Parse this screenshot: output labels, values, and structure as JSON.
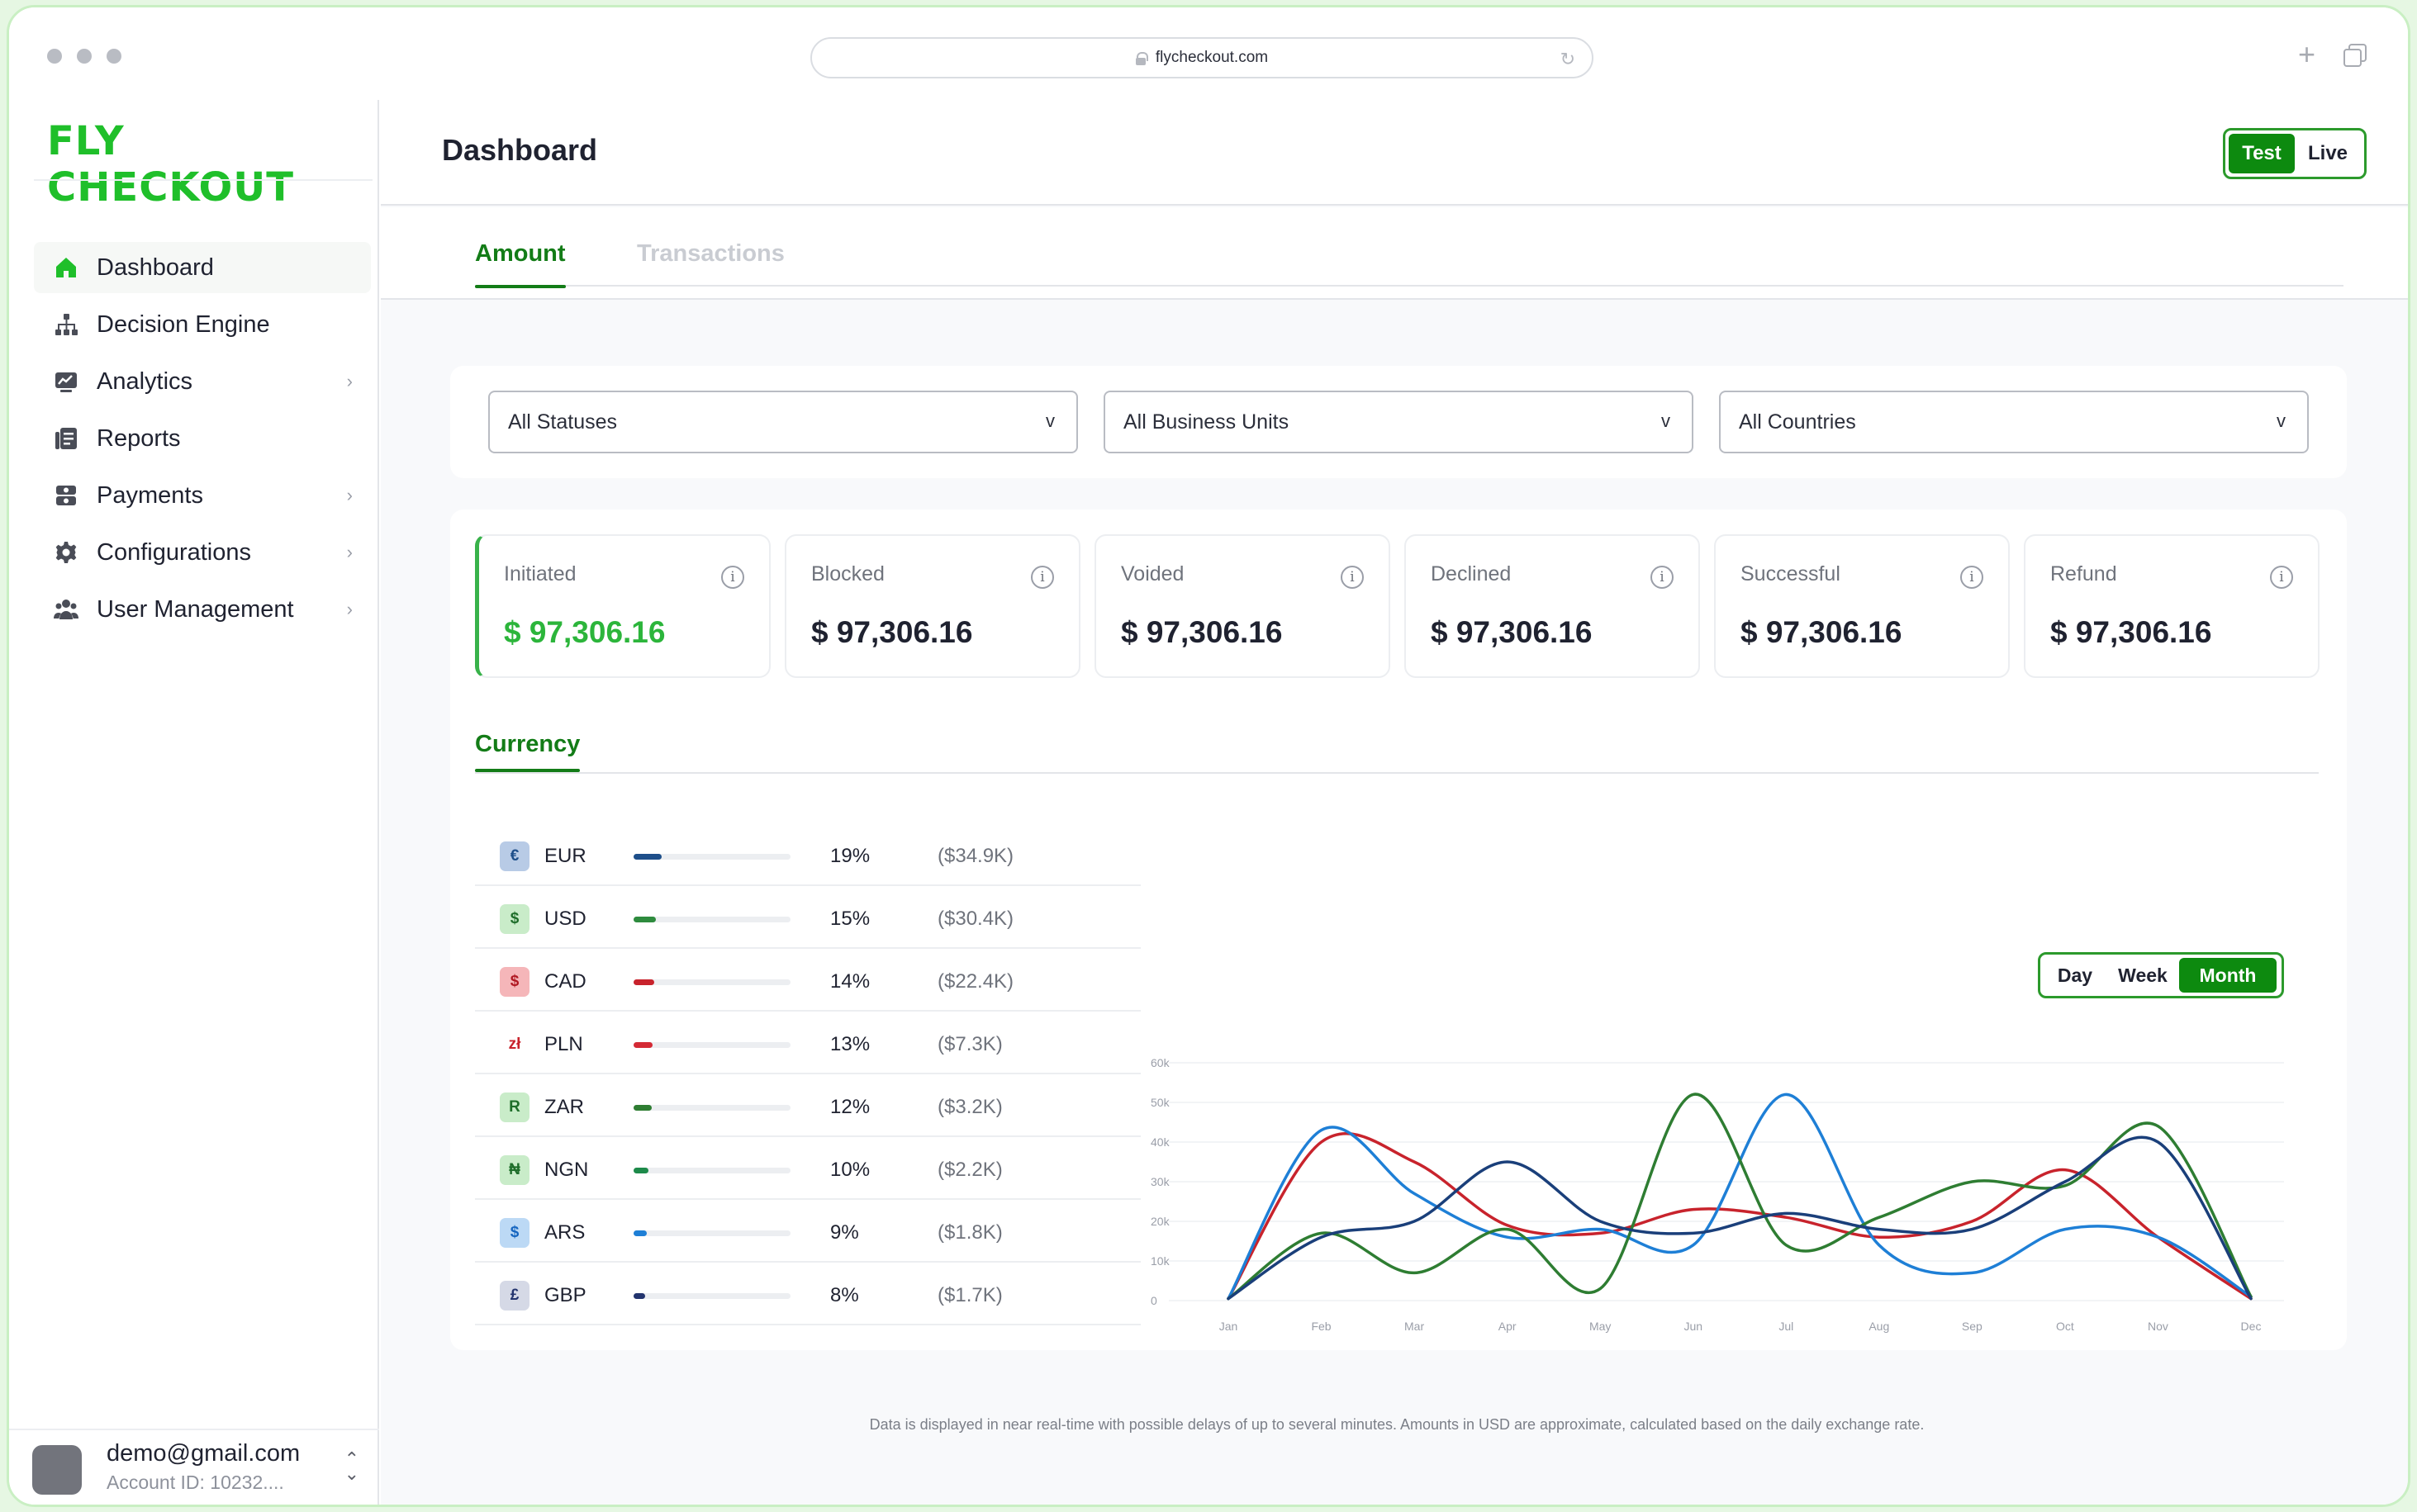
{
  "browser": {
    "url": "flycheckout.com"
  },
  "sidebar": {
    "logo": "FLY CHECKOUT",
    "items": [
      {
        "label": "Dashboard",
        "icon": "home-icon",
        "has_chevron": false
      },
      {
        "label": "Decision Engine",
        "icon": "hierarchy-icon",
        "has_chevron": false
      },
      {
        "label": "Analytics",
        "icon": "analytics-icon",
        "has_chevron": true
      },
      {
        "label": "Reports",
        "icon": "reports-icon",
        "has_chevron": false
      },
      {
        "label": "Payments",
        "icon": "payments-icon",
        "has_chevron": true
      },
      {
        "label": "Configurations",
        "icon": "gear-icon",
        "has_chevron": true
      },
      {
        "label": "User Management",
        "icon": "users-icon",
        "has_chevron": true
      }
    ],
    "user": {
      "email": "demo@gmail.com",
      "account": "Account ID: 10232...."
    }
  },
  "header": {
    "title": "Dashboard",
    "env": {
      "test": "Test",
      "live": "Live",
      "selected": "Test"
    }
  },
  "tabs": [
    {
      "label": "Amount",
      "active": true
    },
    {
      "label": "Transactions",
      "active": false
    }
  ],
  "filters": [
    {
      "value": "All Statuses"
    },
    {
      "value": "All Business Units"
    },
    {
      "value": "All Countries"
    }
  ],
  "cards": [
    {
      "label": "Initiated",
      "value": "$ 97,306.16"
    },
    {
      "label": "Blocked",
      "value": "$ 97,306.16"
    },
    {
      "label": "Voided",
      "value": "$ 97,306.16"
    },
    {
      "label": "Declined",
      "value": "$ 97,306.16"
    },
    {
      "label": "Successful",
      "value": "$ 97,306.16"
    },
    {
      "label": "Refund",
      "value": "$ 97,306.16"
    }
  ],
  "currency": {
    "title": "Currency",
    "rows": [
      {
        "symbol": "€",
        "code": "EUR",
        "pct": "19%",
        "amount": "($34.9K)",
        "fill": 0.19,
        "color": "#1e4f8a",
        "badge_bg": "#b8cbe6",
        "badge_fg": "#1e4f8a"
      },
      {
        "symbol": "$",
        "code": "USD",
        "pct": "15%",
        "amount": "($30.4K)",
        "fill": 0.15,
        "color": "#2e8b3e",
        "badge_bg": "#c9ecc9",
        "badge_fg": "#1e6e2a"
      },
      {
        "symbol": "$",
        "code": "CAD",
        "pct": "14%",
        "amount": "($22.4K)",
        "fill": 0.14,
        "color": "#c8232c",
        "badge_bg": "#f5b6b9",
        "badge_fg": "#b01822"
      },
      {
        "symbol": "zł",
        "code": "PLN",
        "pct": "13%",
        "amount": "($7.3K)",
        "fill": 0.13,
        "color": "#d42a35",
        "badge_bg": "#ffffff",
        "badge_fg": "#c8232c"
      },
      {
        "symbol": "R",
        "code": "ZAR",
        "pct": "12%",
        "amount": "($3.2K)",
        "fill": 0.12,
        "color": "#2e7d32",
        "badge_bg": "#c9ecc9",
        "badge_fg": "#1e6e2a"
      },
      {
        "symbol": "₦",
        "code": "NGN",
        "pct": "10%",
        "amount": "($2.2K)",
        "fill": 0.1,
        "color": "#1d8a4a",
        "badge_bg": "#c9ecc9",
        "badge_fg": "#1e6e2a"
      },
      {
        "symbol": "$",
        "code": "ARS",
        "pct": "9%",
        "amount": "($1.8K)",
        "fill": 0.09,
        "color": "#1e7fd6",
        "badge_bg": "#bcd9f5",
        "badge_fg": "#1565c0"
      },
      {
        "symbol": "£",
        "code": "GBP",
        "pct": "8%",
        "amount": "($1.7K)",
        "fill": 0.08,
        "color": "#23346e",
        "badge_bg": "#d5d9e6",
        "badge_fg": "#23346e"
      }
    ]
  },
  "range": {
    "options": [
      "Day",
      "Week",
      "Month"
    ],
    "selected": "Month"
  },
  "chart_data": {
    "type": "line",
    "categories": [
      "Jan",
      "Feb",
      "Mar",
      "Apr",
      "May",
      "Jun",
      "Jul",
      "Aug",
      "Sep",
      "Oct",
      "Nov",
      "Dec"
    ],
    "y_ticks": [
      "0",
      "10k",
      "20k",
      "30k",
      "40k",
      "50k",
      "60k"
    ],
    "ylim": [
      0,
      60000
    ],
    "grid": true,
    "series": [
      {
        "color": "#c8232c",
        "values": [
          500,
          40000,
          35000,
          19000,
          17000,
          23000,
          21000,
          16000,
          20000,
          33000,
          16000,
          500
        ]
      },
      {
        "color": "#1e7fd6",
        "values": [
          500,
          43000,
          27000,
          16000,
          18000,
          14000,
          52000,
          14000,
          7000,
          18000,
          16000,
          1000
        ]
      },
      {
        "color": "#2e7d32",
        "values": [
          500,
          17000,
          7000,
          18000,
          3000,
          52000,
          14000,
          21000,
          30000,
          29000,
          44000,
          1000
        ]
      },
      {
        "color": "#1a3f7a",
        "values": [
          500,
          16000,
          20000,
          35000,
          20000,
          17000,
          22000,
          18000,
          18000,
          30000,
          40000,
          500
        ]
      }
    ]
  },
  "footnote": "Data is displayed in near real-time with possible delays of up to several minutes. Amounts in USD are approximate, calculated based on the daily exchange rate."
}
